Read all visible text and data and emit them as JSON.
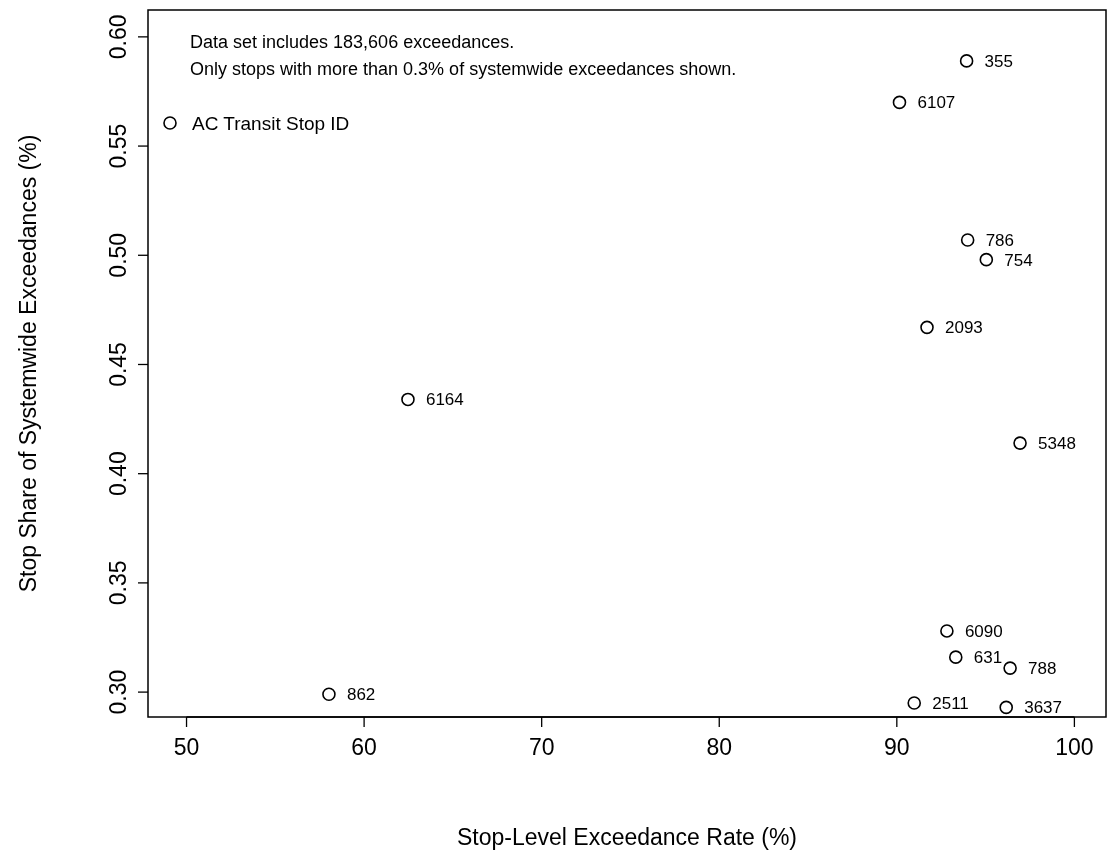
{
  "chart_data": {
    "type": "scatter",
    "xlabel": "Stop-Level Exceedance Rate (%)",
    "ylabel": "Stop Share of Systemwide Exceedances (%)",
    "xlim": [
      47.83,
      101.78
    ],
    "ylim": [
      0.2886,
      0.6123
    ],
    "xticks": [
      50,
      60,
      70,
      80,
      90,
      100
    ],
    "yticks": [
      {
        "value": 0.3,
        "label": "0.30"
      },
      0.35,
      {
        "value": 0.4,
        "label": "0.40"
      },
      0.45,
      {
        "value": 0.5,
        "label": "0.50"
      },
      0.55,
      {
        "value": 0.6,
        "label": "0.60"
      }
    ],
    "grid": false,
    "legend": "top left",
    "marker": "circle",
    "series": [
      {
        "name": "AC Transit Stop ID",
        "color": "#000000",
        "x": [
          93.93,
          90.15,
          93.99,
          95.04,
          91.7,
          62.47,
          96.94,
          92.82,
          93.32,
          96.38,
          58.02,
          90.98,
          96.16
        ],
        "values": [
          0.589,
          0.57,
          0.507,
          0.498,
          0.467,
          0.434,
          0.414,
          0.328,
          0.316,
          0.311,
          0.299,
          0.295,
          0.293
        ]
      }
    ],
    "annotations": [
      "Data set includes 183,606 exceedances.",
      "Only stops with more than 0.3% of systemwide exceedances shown.",
      {
        "text": "355",
        "x": 93.93,
        "y": 0.589
      },
      {
        "text": "6107",
        "x": 90.15,
        "y": 0.57
      },
      {
        "text": "786",
        "x": 93.99,
        "y": 0.507
      },
      {
        "text": "754",
        "x": 95.04,
        "y": 0.498
      },
      {
        "text": "2093",
        "x": 91.7,
        "y": 0.467
      },
      {
        "text": "6164",
        "x": 62.47,
        "y": 0.434
      },
      {
        "text": "5348",
        "x": 96.94,
        "y": 0.414
      },
      {
        "text": "6090",
        "x": 92.82,
        "y": 0.328
      },
      {
        "text": "631",
        "x": 93.32,
        "y": 0.316
      },
      {
        "text": "788",
        "x": 96.38,
        "y": 0.311
      },
      {
        "text": "862",
        "x": 58.02,
        "y": 0.299
      },
      {
        "text": "2511",
        "x": 90.98,
        "y": 0.295
      },
      {
        "text": "3637",
        "x": 96.16,
        "y": 0.293
      }
    ]
  }
}
